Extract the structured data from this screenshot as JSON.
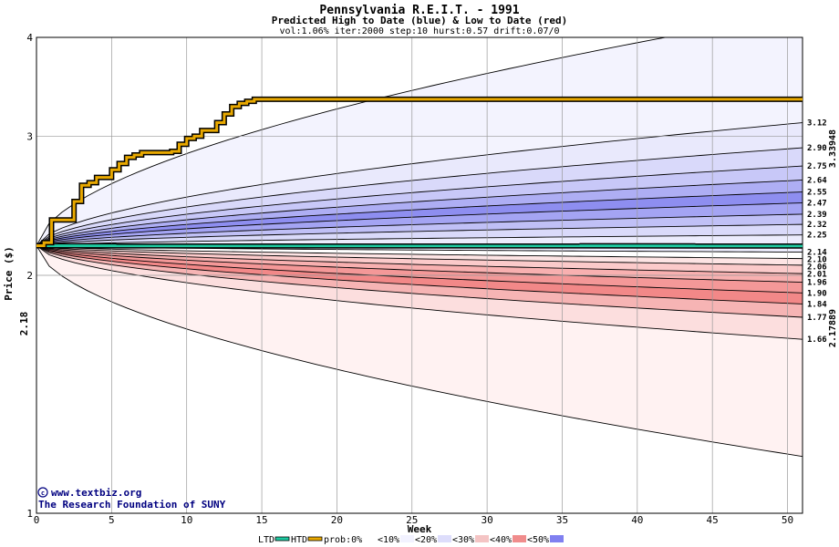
{
  "chart_data": {
    "type": "area",
    "title": "Pennsylvania R.E.I.T. - 1991",
    "subtitle": "Predicted High to Date (blue) &  Low to Date (red)",
    "params": "vol:1.06% iter:2000 step:10 hurst:0.57 drift:0.07/0",
    "xlabel": "Week",
    "ylabel": "Price ($)",
    "xlim": [
      0,
      51
    ],
    "ylim": [
      1,
      4
    ],
    "y_scale": "log",
    "x_ticks": [
      0,
      5,
      10,
      15,
      20,
      25,
      30,
      35,
      40,
      45,
      50
    ],
    "y_ticks": [
      1,
      2,
      3,
      4
    ],
    "grid": true,
    "start_price": 2.18,
    "start_price_label": "2.18",
    "htd_final": 3.33948,
    "htd_final_label": "3.33948",
    "ltd_final": 2.17889,
    "ltd_final_label": "2.17889",
    "htd_path": {
      "x": [
        0,
        0.5,
        1,
        1.5,
        2,
        2.5,
        3,
        3.5,
        4,
        4.5,
        5,
        5.5,
        6,
        6.5,
        7,
        7.5,
        8,
        8.5,
        9,
        9.5,
        10,
        10.5,
        11,
        11.5,
        12,
        12.5,
        13,
        13.5,
        14,
        14.5,
        51
      ],
      "y": [
        2.18,
        2.2,
        2.35,
        2.35,
        2.35,
        2.48,
        2.6,
        2.62,
        2.66,
        2.66,
        2.72,
        2.77,
        2.82,
        2.84,
        2.86,
        2.86,
        2.86,
        2.86,
        2.87,
        2.93,
        2.98,
        3.0,
        3.05,
        3.05,
        3.12,
        3.2,
        3.27,
        3.3,
        3.32,
        3.34,
        3.34
      ]
    },
    "ltd_path": {
      "x": [
        0,
        51
      ],
      "y": [
        2.18,
        2.17889
      ]
    },
    "upper_quantiles": {
      "values_at_end": [
        3.12,
        2.9,
        2.75,
        2.64,
        2.55,
        2.47,
        2.39,
        2.32,
        2.25,
        2.14
      ],
      "labels": [
        "3.12",
        "2.90",
        "2.75",
        "2.64",
        "2.55",
        "2.47",
        "2.39",
        "2.32",
        "2.25",
        "2.14"
      ],
      "outer_envelope_end": 4.3
    },
    "lower_quantiles": {
      "values_at_end": [
        2.1,
        2.06,
        2.01,
        1.96,
        1.9,
        1.84,
        1.77,
        1.66
      ],
      "labels": [
        "2.10",
        "2.06",
        "2.01",
        "1.96",
        "1.90",
        "1.84",
        "1.77",
        "1.66"
      ],
      "outer_envelope_end": 1.18
    },
    "legend": [
      {
        "label": "LTD",
        "color": "#1ec8a0",
        "kind": "line"
      },
      {
        "label": "HTD",
        "color": "#e8a800",
        "kind": "line"
      },
      {
        "label": "prob:0%",
        "color": "#ffffff",
        "kind": "swatch"
      },
      {
        "label": "<10%",
        "color": "#f2f2ff",
        "kind": "swatch"
      },
      {
        "label": "<20%",
        "color": "#ddddfb",
        "kind": "swatch"
      },
      {
        "label": "<30%",
        "color": "#f4c4c4",
        "kind": "swatch"
      },
      {
        "label": "<40%",
        "color": "#f08c8c",
        "kind": "swatch"
      },
      {
        "label": "<50%",
        "color": "#8080f0",
        "kind": "swatch"
      }
    ],
    "colors": {
      "upper_bands": [
        "#f3f3fe",
        "#e9e9fc",
        "#d9d9fa",
        "#c8c8f8",
        "#aeaef4",
        "#8e8ef0",
        "#a4a4f3",
        "#c0c0f6",
        "#dadafa",
        "#ececfd"
      ],
      "lower_bands": [
        "#fde4e4",
        "#fbcaca",
        "#f8b0b0",
        "#f49898",
        "#f28888",
        "#f6b4b4",
        "#fcdede",
        "#fff2f2"
      ],
      "htd": "#e8a800",
      "ltd": "#1ec8a0",
      "htd_label": "#a07800",
      "ltd_label": "#109070",
      "start_label": "#006040"
    }
  },
  "credits": {
    "url": "www.textbiz.org",
    "org": "The Research Foundation of SUNY"
  }
}
